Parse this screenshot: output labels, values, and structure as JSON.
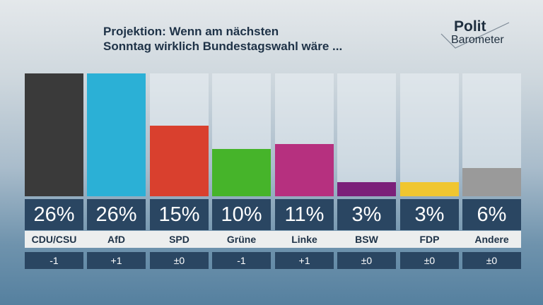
{
  "title_line1": "Projektion: Wenn am nächsten",
  "title_line2": "Sonntag wirklich Bundestagswahl wäre ...",
  "logo": {
    "line1": "Polit",
    "line2": "Barometer"
  },
  "chart_data": {
    "type": "bar",
    "title": "Projektion: Wenn am nächsten Sonntag wirklich Bundestagswahl wäre ...",
    "categories": [
      "CDU/CSU",
      "AfD",
      "SPD",
      "Grüne",
      "Linke",
      "BSW",
      "FDP",
      "Andere"
    ],
    "values": [
      26,
      26,
      15,
      10,
      11,
      3,
      3,
      6
    ],
    "value_labels": [
      "26%",
      "26%",
      "15%",
      "10%",
      "11%",
      "3%",
      "3%",
      "6%"
    ],
    "changes": [
      "-1",
      "+1",
      "±0",
      "-1",
      "+1",
      "±0",
      "±0",
      "±0"
    ],
    "colors": [
      "#3a3a3a",
      "#2bb0d6",
      "#d9402e",
      "#46b42a",
      "#b6307f",
      "#7b2079",
      "#f0c630",
      "#9a9a9a"
    ],
    "ylim": [
      0,
      26
    ],
    "grid": false
  }
}
